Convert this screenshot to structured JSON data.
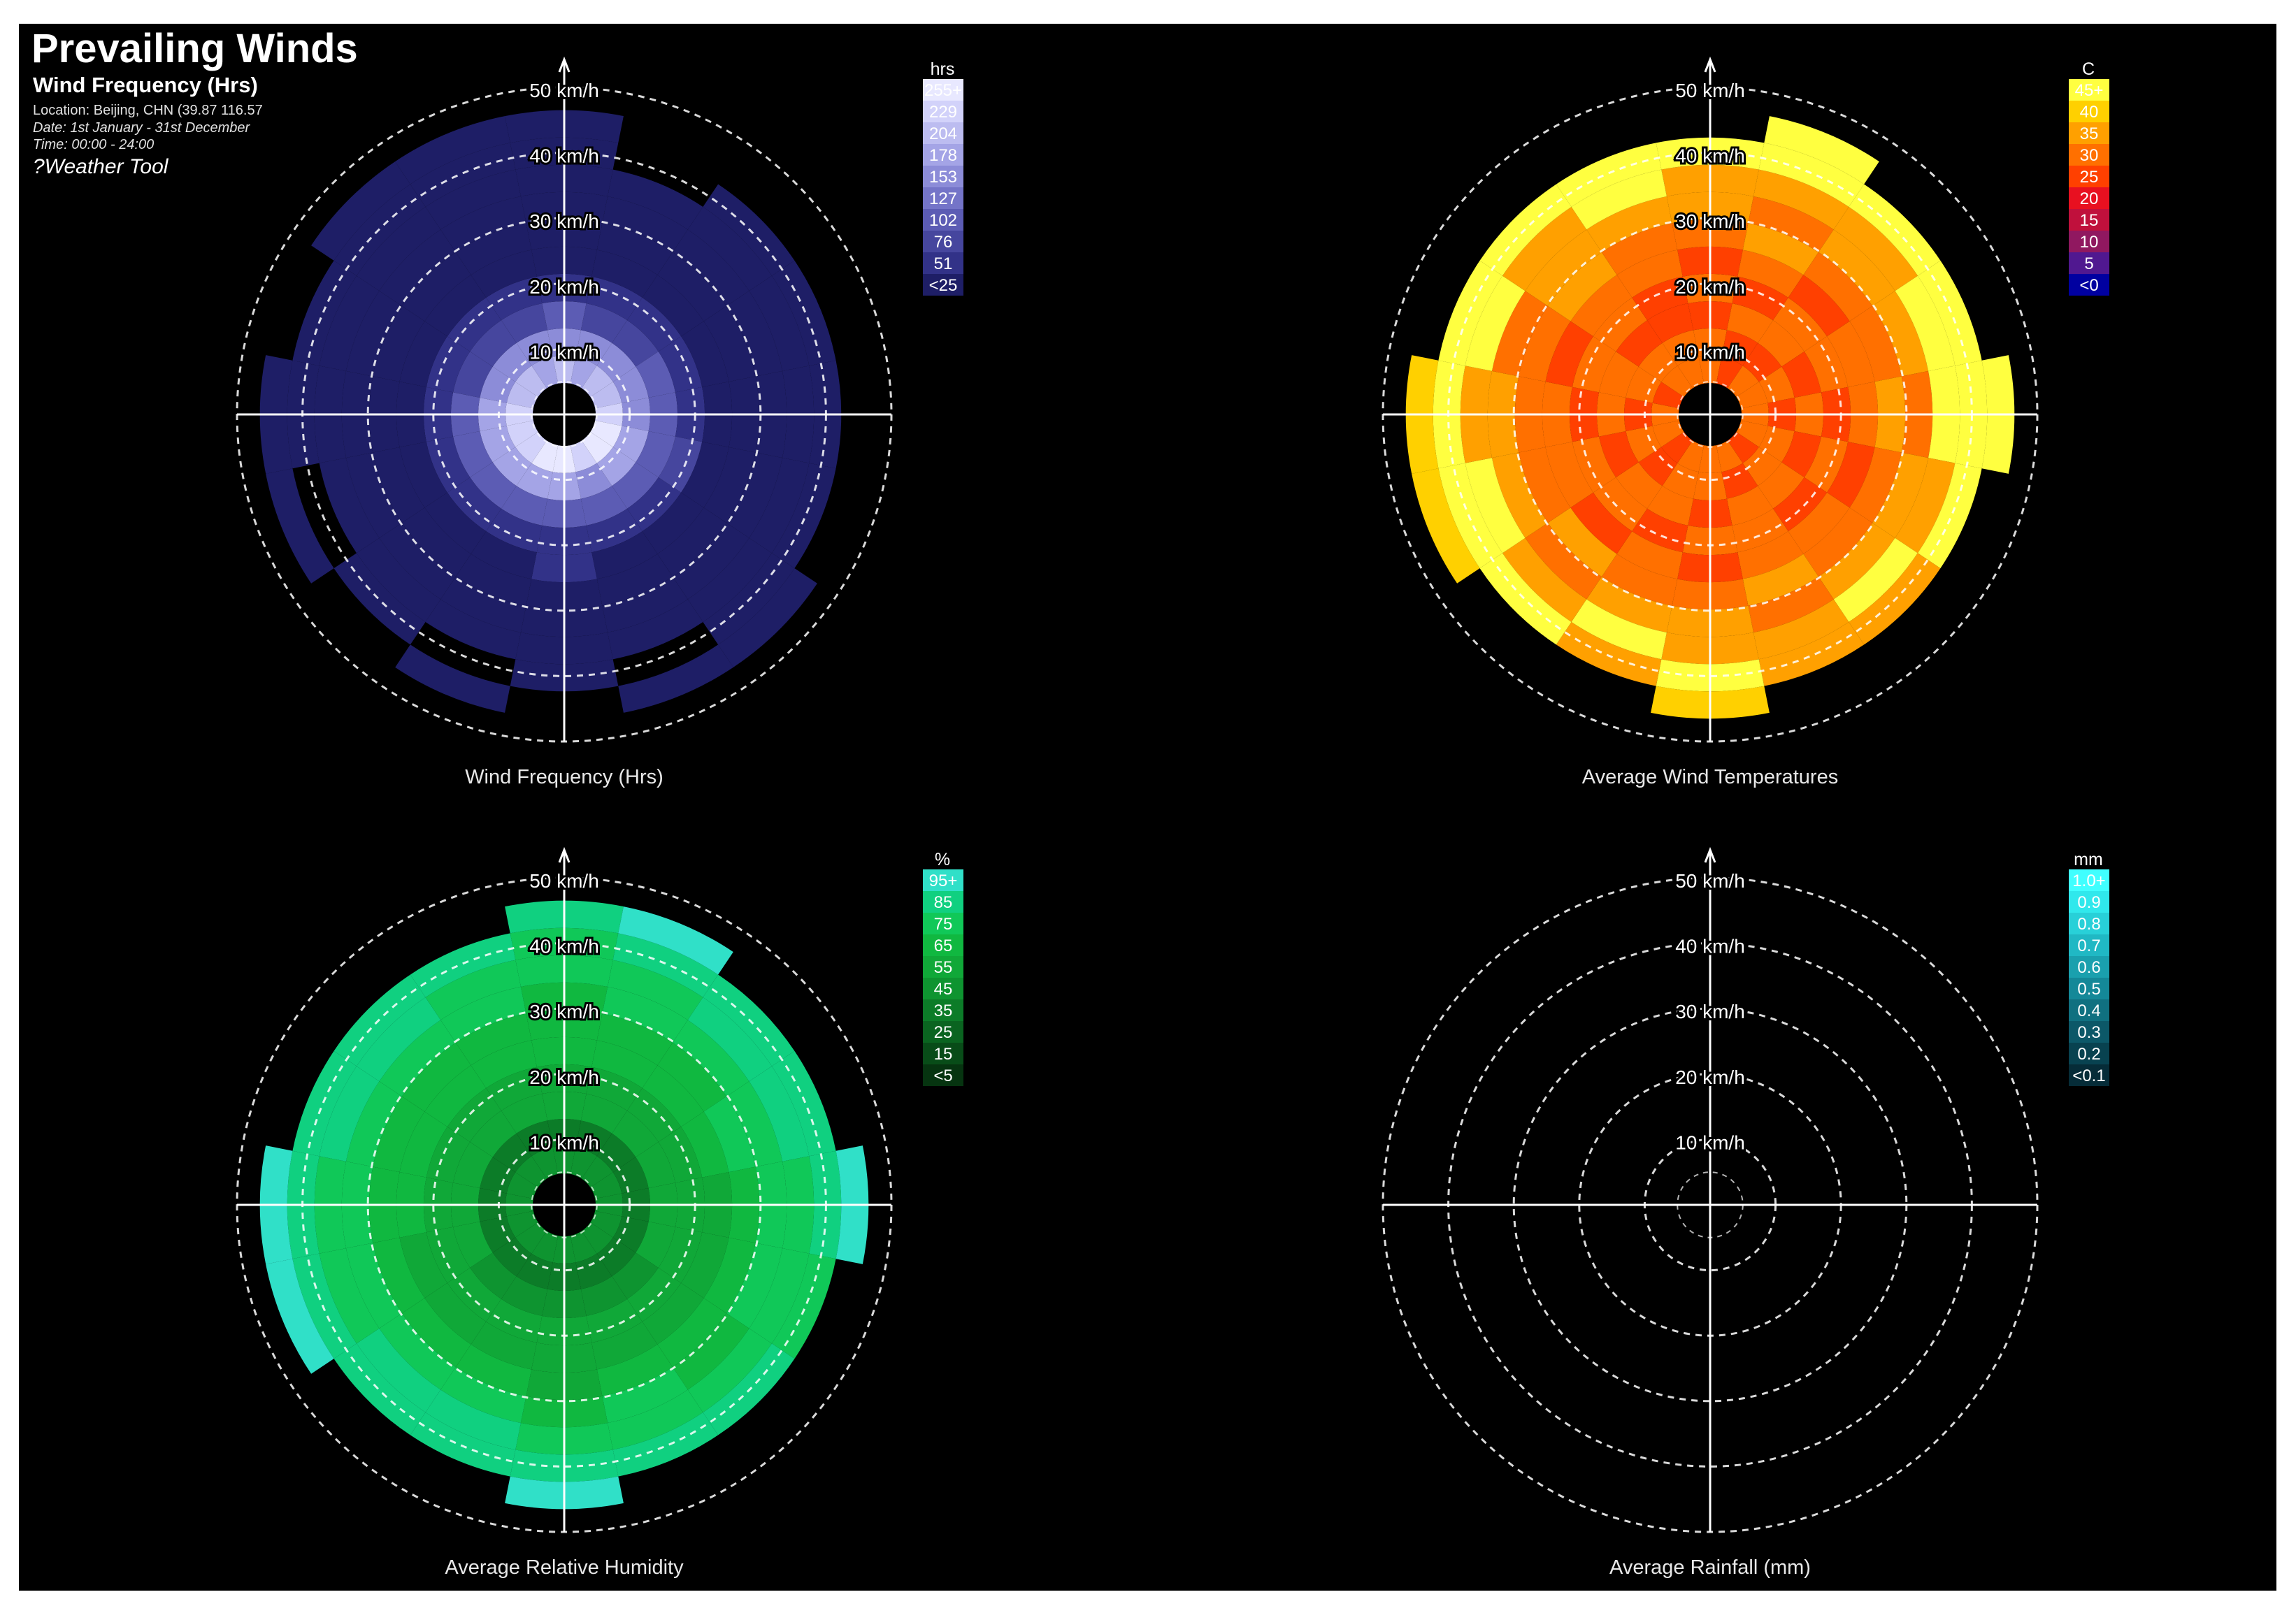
{
  "header": {
    "title": "Prevailing Winds",
    "subtitle": "Wind Frequency (Hrs)",
    "location": "Location: Beijing, CHN (39.87 116.57",
    "date": "Date: 1st January - 31st December",
    "time": "Time: 00:00 - 24:00",
    "tool": "?Weather Tool"
  },
  "chart_data": [
    {
      "type": "polar-heatmap",
      "title": "Wind Frequency (Hrs)",
      "radial_axis": {
        "unit": "km/h",
        "ticks": [
          "10 km/h",
          "20 km/h",
          "30 km/h",
          "40 km/h",
          "50 km/h"
        ],
        "range": [
          0,
          50
        ]
      },
      "legend": {
        "unit": "hrs",
        "labels": [
          "255+",
          "229",
          "204",
          "178",
          "153",
          "127",
          "102",
          "76",
          "51",
          "<25"
        ],
        "colors": [
          "#e8e8ff",
          "#d2d2fa",
          "#bcbcf0",
          "#a4a4e6",
          "#8c8cd8",
          "#7474c8",
          "#5c5cb4",
          "#46469e",
          "#323288",
          "#1e1e66"
        ],
        "position": "right"
      },
      "bins": [
        [
          7,
          6,
          7,
          7,
          8,
          9,
          9,
          8,
          9,
          9,
          8,
          8,
          8,
          7,
          7,
          6
        ],
        [
          5,
          5,
          5,
          5,
          5,
          6,
          6,
          5,
          6,
          6,
          6,
          6,
          6,
          5,
          5,
          5
        ],
        [
          3,
          2,
          2,
          3,
          3,
          3,
          3,
          3,
          3,
          3,
          3,
          3,
          3,
          2,
          2,
          2
        ],
        [
          1,
          1,
          1,
          1,
          1,
          2,
          1,
          1,
          1,
          1,
          1,
          1,
          1,
          1,
          1,
          1
        ],
        [
          0,
          0,
          0,
          0,
          0,
          0,
          0,
          0,
          1,
          0,
          0,
          0,
          0,
          0,
          0,
          0
        ],
        [
          0,
          0,
          0,
          0,
          0,
          0,
          0,
          0,
          0,
          0,
          0,
          0,
          0,
          0,
          0,
          0
        ],
        [
          0,
          0,
          0,
          0,
          0,
          0,
          0,
          0,
          0,
          0,
          0,
          0,
          0,
          0,
          0,
          0
        ],
        [
          0,
          0,
          0,
          0,
          0,
          0,
          0,
          0,
          0,
          0,
          0,
          0,
          0,
          0,
          0,
          0
        ],
        [
          0,
          -1,
          0,
          0,
          0,
          0,
          0,
          -1,
          0,
          -1,
          0,
          -1,
          0,
          0,
          0,
          0
        ],
        [
          0,
          -1,
          -1,
          -1,
          -1,
          -1,
          0,
          0,
          -1,
          0,
          -1,
          0,
          0,
          -1,
          0,
          0
        ]
      ]
    },
    {
      "type": "polar-heatmap",
      "title": "Average Wind Temperatures",
      "radial_axis": {
        "unit": "km/h",
        "ticks": [
          "10 km/h",
          "20 km/h",
          "30 km/h",
          "40 km/h",
          "50 km/h"
        ],
        "range": [
          0,
          50
        ]
      },
      "legend": {
        "unit": "C",
        "labels": [
          "45+",
          "40",
          "35",
          "30",
          "25",
          "20",
          "15",
          "10",
          "5",
          "<0"
        ],
        "colors": [
          "#ffff40",
          "#ffd000",
          "#ffa000",
          "#ff7000",
          "#ff4000",
          "#e81020",
          "#c0103c",
          "#901860",
          "#501890",
          "#0000a0"
        ],
        "position": "right"
      },
      "bins": [
        [
          6,
          5,
          6,
          6,
          6,
          6,
          5,
          6,
          6,
          6,
          5,
          6,
          6,
          5,
          6,
          6
        ],
        [
          6,
          5,
          5,
          6,
          5,
          6,
          6,
          5,
          6,
          6,
          5,
          6,
          5,
          6,
          6,
          6
        ],
        [
          5,
          6,
          6,
          5,
          6,
          5,
          6,
          6,
          5,
          6,
          6,
          5,
          6,
          6,
          5,
          5
        ],
        [
          6,
          5,
          6,
          6,
          5,
          6,
          5,
          6,
          6,
          5,
          6,
          6,
          5,
          6,
          6,
          5
        ],
        [
          5,
          6,
          5,
          6,
          6,
          5,
          6,
          6,
          5,
          6,
          5,
          6,
          6,
          5,
          6,
          6
        ],
        [
          6,
          7,
          6,
          6,
          7,
          6,
          6,
          7,
          6,
          6,
          7,
          6,
          6,
          6,
          7,
          6
        ],
        [
          7,
          6,
          7,
          7,
          6,
          7,
          7,
          6,
          7,
          7,
          6,
          7,
          7,
          6,
          7,
          7
        ],
        [
          7,
          7,
          7,
          9,
          9,
          7,
          9,
          7,
          7,
          9,
          7,
          9,
          7,
          9,
          7,
          9
        ],
        [
          9,
          9,
          9,
          9,
          9,
          9,
          7,
          7,
          9,
          7,
          9,
          9,
          9,
          9,
          9,
          9
        ],
        [
          -1,
          9,
          -1,
          -1,
          9,
          -1,
          -1,
          -1,
          8,
          -1,
          -1,
          8,
          8,
          -1,
          -1,
          -1
        ]
      ]
    },
    {
      "type": "polar-heatmap",
      "title": "Average Relative Humidity",
      "radial_axis": {
        "unit": "km/h",
        "ticks": [
          "10 km/h",
          "20 km/h",
          "30 km/h",
          "40 km/h",
          "50 km/h"
        ],
        "range": [
          0,
          50
        ]
      },
      "legend": {
        "unit": "%",
        "labels": [
          "95+",
          "85",
          "75",
          "65",
          "55",
          "45",
          "35",
          "25",
          "15",
          "<5"
        ],
        "colors": [
          "#30e0c8",
          "#10d080",
          "#10c858",
          "#10b840",
          "#10a838",
          "#0e9430",
          "#0c7c28",
          "#0a6420",
          "#084c18",
          "#063410"
        ],
        "position": "right"
      },
      "bins": [
        [
          4,
          4,
          4,
          4,
          4,
          4,
          4,
          4,
          4,
          4,
          4,
          4,
          4,
          4,
          4,
          4
        ],
        [
          3,
          3,
          3,
          3,
          3,
          3,
          3,
          3,
          3,
          3,
          3,
          3,
          3,
          3,
          3,
          3
        ],
        [
          5,
          5,
          5,
          5,
          5,
          5,
          4,
          4,
          4,
          4,
          4,
          5,
          5,
          5,
          5,
          5
        ],
        [
          5,
          5,
          5,
          5,
          5,
          5,
          5,
          5,
          5,
          5,
          5,
          5,
          5,
          5,
          5,
          5
        ],
        [
          6,
          6,
          6,
          6,
          5,
          5,
          5,
          5,
          5,
          5,
          5,
          5,
          6,
          6,
          6,
          6
        ],
        [
          6,
          6,
          6,
          7,
          6,
          6,
          6,
          6,
          5,
          6,
          6,
          6,
          6,
          6,
          6,
          6
        ],
        [
          6,
          7,
          7,
          7,
          7,
          7,
          6,
          7,
          6,
          7,
          7,
          7,
          7,
          7,
          7,
          7
        ],
        [
          7,
          7,
          8,
          8,
          7,
          7,
          7,
          7,
          7,
          8,
          8,
          7,
          7,
          8,
          8,
          7
        ],
        [
          7,
          8,
          8,
          8,
          8,
          7,
          8,
          8,
          8,
          8,
          8,
          8,
          8,
          8,
          8,
          8
        ],
        [
          8,
          9,
          -1,
          -1,
          9,
          -1,
          -1,
          -1,
          9,
          -1,
          -1,
          9,
          9,
          -1,
          -1,
          -1
        ]
      ]
    },
    {
      "type": "polar-heatmap",
      "title": "Average Rainfall (mm)",
      "radial_axis": {
        "unit": "km/h",
        "ticks": [
          "10 km/h",
          "20 km/h",
          "30 km/h",
          "40 km/h",
          "50 km/h"
        ],
        "range": [
          0,
          50
        ]
      },
      "legend": {
        "unit": "mm",
        "labels": [
          "1.0+",
          "0.9",
          "0.8",
          "0.7",
          "0.6",
          "0.5",
          "0.4",
          "0.3",
          "0.2",
          "<0.1"
        ],
        "colors": [
          "#40ffff",
          "#30e8ec",
          "#28d0d8",
          "#20b8c4",
          "#1aa0ae",
          "#148898",
          "#107080",
          "#0c5868",
          "#084250",
          "#062c38"
        ],
        "position": "right"
      },
      "bins": []
    }
  ]
}
